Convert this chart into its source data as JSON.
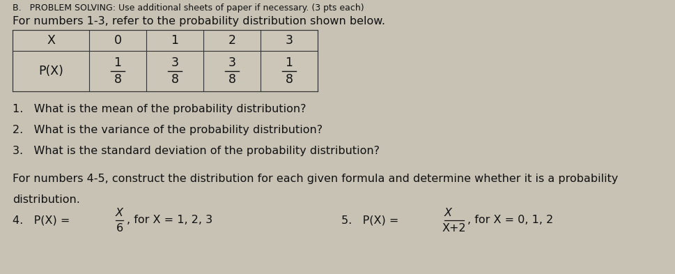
{
  "background_color": "#c8c2b5",
  "table_bg": "#d8d2c5",
  "header_line": "B.   PROBLEM SOLVING: Use additional sheets of paper if necessary. (3 pts each)",
  "intro_line": "For numbers 1-3, refer to the probability distribution shown below.",
  "table_headers": [
    "X",
    "0",
    "1",
    "2",
    "3"
  ],
  "table_row_label": "P(X)",
  "frac_nums": [
    "1",
    "3",
    "3",
    "1"
  ],
  "frac_dens": [
    "8",
    "8",
    "8",
    "8"
  ],
  "questions": [
    "1.   What is the mean of the probability distribution?",
    "2.   What is the variance of the probability distribution?",
    "3.   What is the standard deviation of the probability distribution?"
  ],
  "for45_line1": "For numbers 4-5, construct the distribution for each given formula and determine whether it is a probability",
  "for45_line2": "distribution.",
  "q4_prefix": "4.   P(X) = ",
  "q4_num": "X",
  "q4_den": "6",
  "q4_suffix": ", for X = 1, 2, 3",
  "q5_prefix": "5.   P(X) = ",
  "q5_num": "X",
  "q5_den": "X+2",
  "q5_suffix": ", for X = 0, 1, 2",
  "text_color": "#111111",
  "line_color": "#333333",
  "fs_header": 9.0,
  "fs_main": 11.5,
  "fs_table": 12.5
}
